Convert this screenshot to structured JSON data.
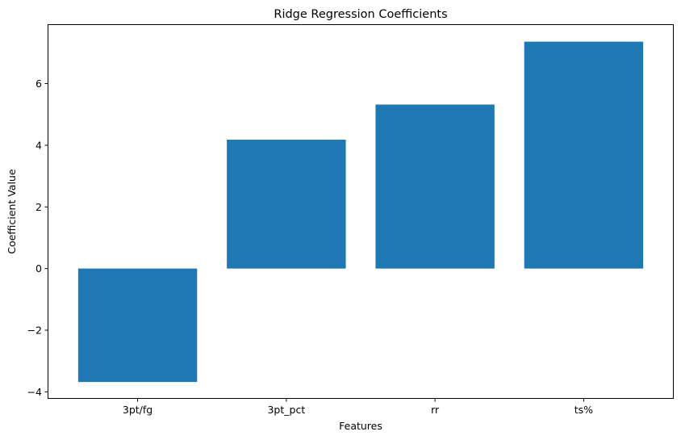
{
  "chart_data": {
    "type": "bar",
    "title": "Ridge Regression Coefficients",
    "xlabel": "Features",
    "ylabel": "Coefficient Value",
    "categories": [
      "3pt/fg",
      "3pt_pct",
      "rr",
      "ts%"
    ],
    "values": [
      -3.68,
      4.18,
      5.32,
      7.36
    ],
    "ylim": [
      -4.2,
      7.9
    ],
    "yticks": [
      -4,
      -2,
      0,
      2,
      4,
      6
    ],
    "ytick_labels": [
      "−4",
      "−2",
      "0",
      "2",
      "4",
      "6"
    ],
    "bar_color": "#1f77b4",
    "grid": false,
    "legend": "none"
  }
}
